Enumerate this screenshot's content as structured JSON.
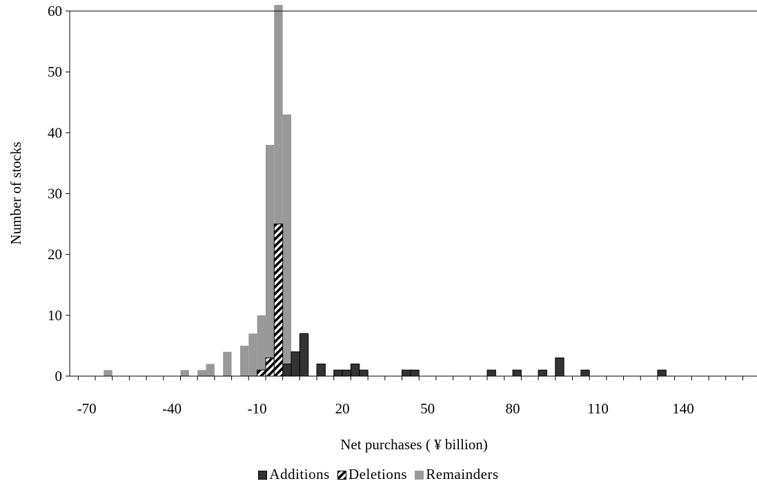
{
  "chart_data": {
    "type": "bar",
    "xlabel": "Net purchases ( ¥ billion)",
    "ylabel": "Number of stocks",
    "xlim": [
      -76,
      166
    ],
    "ylim": [
      0,
      60
    ],
    "bin_width": 3,
    "x_ticks": [
      -70,
      -40,
      -10,
      20,
      50,
      80,
      110,
      140
    ],
    "y_ticks": [
      0,
      10,
      20,
      30,
      40,
      50,
      60
    ],
    "grid": false,
    "legend_position": "bottom",
    "series": [
      {
        "name": "Additions",
        "color": "#333333",
        "pattern": "solid",
        "points": [
          {
            "x": -1,
            "y": 2
          },
          {
            "x": 2,
            "y": 4
          },
          {
            "x": 5,
            "y": 7
          },
          {
            "x": 11,
            "y": 2
          },
          {
            "x": 17,
            "y": 1
          },
          {
            "x": 20,
            "y": 1
          },
          {
            "x": 23,
            "y": 2
          },
          {
            "x": 26,
            "y": 1
          },
          {
            "x": 41,
            "y": 1
          },
          {
            "x": 44,
            "y": 1
          },
          {
            "x": 71,
            "y": 1
          },
          {
            "x": 80,
            "y": 1
          },
          {
            "x": 89,
            "y": 1
          },
          {
            "x": 95,
            "y": 3
          },
          {
            "x": 104,
            "y": 1
          },
          {
            "x": 131,
            "y": 1
          }
        ]
      },
      {
        "name": "Deletions",
        "color": "#000000",
        "pattern": "diagonal",
        "points": [
          {
            "x": -10,
            "y": 1
          },
          {
            "x": -7,
            "y": 3
          },
          {
            "x": -4,
            "y": 25
          }
        ]
      },
      {
        "name": "Remainders",
        "color": "#999999",
        "pattern": "solid",
        "points": [
          {
            "x": -64,
            "y": 1
          },
          {
            "x": -37,
            "y": 1
          },
          {
            "x": -31,
            "y": 1
          },
          {
            "x": -28,
            "y": 2
          },
          {
            "x": -22,
            "y": 4
          },
          {
            "x": -16,
            "y": 5
          },
          {
            "x": -13,
            "y": 7
          },
          {
            "x": -10,
            "y": 10
          },
          {
            "x": -7,
            "y": 38
          },
          {
            "x": -4,
            "y": 61
          },
          {
            "x": -1,
            "y": 43
          }
        ]
      }
    ]
  }
}
